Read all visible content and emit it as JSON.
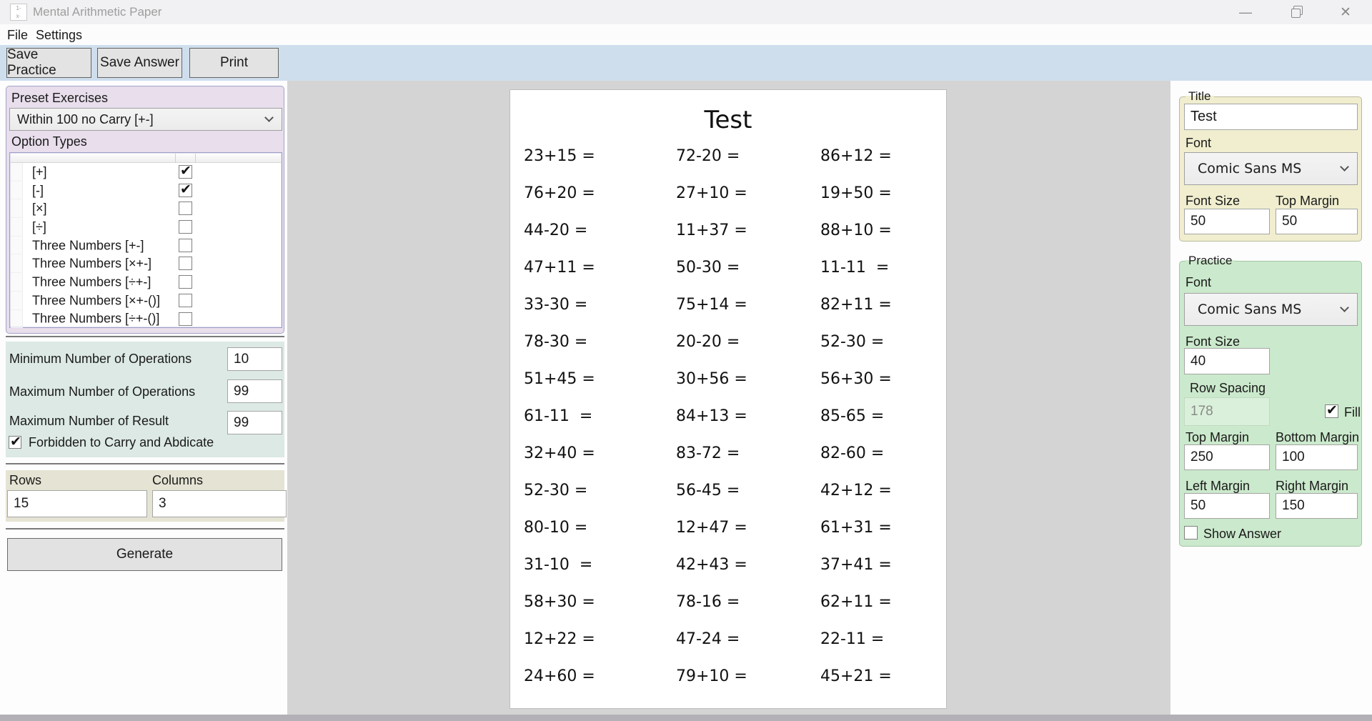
{
  "window": {
    "title": "Mental Arithmetic Paper"
  },
  "menu": {
    "file": "File",
    "settings": "Settings"
  },
  "toolbar": {
    "save_practice": "Save Practice",
    "save_answer": "Save Answer",
    "print": "Print"
  },
  "left_panel": {
    "preset": {
      "label": "Preset Exercises",
      "selected": "Within 100 no Carry [+-]"
    },
    "option_types": {
      "label": "Option Types",
      "options": [
        {
          "label": "[+]",
          "checked": true
        },
        {
          "label": "[-]",
          "checked": true
        },
        {
          "label": "[×]",
          "checked": false
        },
        {
          "label": "[÷]",
          "checked": false
        },
        {
          "label": "Three Numbers [+-]",
          "checked": false
        },
        {
          "label": "Three Numbers [×+-]",
          "checked": false
        },
        {
          "label": "Three Numbers [÷+-]",
          "checked": false
        },
        {
          "label": "Three Numbers [×+-()]",
          "checked": false
        },
        {
          "label": "Three Numbers [÷+-()]",
          "checked": false
        }
      ]
    },
    "constraints": {
      "min_ops_label": "Minimum Number of Operations",
      "min_ops_value": "10",
      "max_ops_label": "Maximum Number of Operations",
      "max_ops_value": "99",
      "max_result_label": "Maximum Number of Result",
      "max_result_value": "99",
      "forbid": {
        "label": "Forbidden to Carry and Abdicate",
        "checked": true
      }
    },
    "grid": {
      "rows_label": "Rows",
      "rows_value": "15",
      "columns_label": "Columns",
      "columns_value": "3"
    },
    "generate_label": "Generate"
  },
  "preview": {
    "title": "Test",
    "rows": [
      [
        "23+15 =",
        "72-20 =",
        "86+12 ="
      ],
      [
        "76+20 =",
        "27+10 =",
        "19+50 ="
      ],
      [
        "44-20 =",
        "11+37 =",
        "88+10 ="
      ],
      [
        "47+11 =",
        "50-30 =",
        "11-11  ="
      ],
      [
        "33-30 =",
        "75+14 =",
        "82+11 ="
      ],
      [
        "78-30 =",
        "20-20 =",
        "52-30 ="
      ],
      [
        "51+45 =",
        "30+56 =",
        "56+30 ="
      ],
      [
        "61-11  =",
        "84+13 =",
        "85-65 ="
      ],
      [
        "32+40 =",
        "83-72 =",
        "82-60 ="
      ],
      [
        "52-30 =",
        "56-45 =",
        "42+12 ="
      ],
      [
        "80-10 =",
        "12+47 =",
        "61+31 ="
      ],
      [
        "31-10  =",
        "42+43 =",
        "37+41 ="
      ],
      [
        "58+30 =",
        "78-16 =",
        "62+11 ="
      ],
      [
        "12+22 =",
        "47-24 =",
        "22-11 ="
      ],
      [
        "24+60 =",
        "79+10 =",
        "45+21 ="
      ]
    ]
  },
  "right_panel": {
    "title_group": {
      "legend": "Title",
      "title_value": "Test",
      "font_label": "Font",
      "font_value": "Comic Sans MS",
      "font_size_label": "Font Size",
      "font_size_value": "50",
      "top_margin_label": "Top Margin",
      "top_margin_value": "50"
    },
    "practice_group": {
      "legend": "Practice",
      "font_label": "Font",
      "font_value": "Comic Sans MS",
      "font_size_label": "Font Size",
      "font_size_value": "40",
      "row_spacing_label": "Row Spacing",
      "row_spacing_value": "178",
      "fill": {
        "label": "Fill",
        "checked": true
      },
      "top_margin_label": "Top Margin",
      "top_margin_value": "250",
      "bottom_margin_label": "Bottom Margin",
      "bottom_margin_value": "100",
      "left_margin_label": "Left Margin",
      "left_margin_value": "50",
      "right_margin_label": "Right Margin",
      "right_margin_value": "150",
      "show_answer": {
        "label": "Show Answer",
        "checked": false
      }
    }
  },
  "colors": {
    "toolbar_bg": "#cfdeed",
    "preset_bg": "#e8deec",
    "constraints_bg": "#dce9e4",
    "grid_bg": "#e5e3d3",
    "title_group_bg": "#f0eecf",
    "practice_group_bg": "#cbe9cc",
    "preview_bg": "#d4d4d4",
    "disabled_input_bg": "#daf0da",
    "scrollbar": "#b3b1b7"
  }
}
